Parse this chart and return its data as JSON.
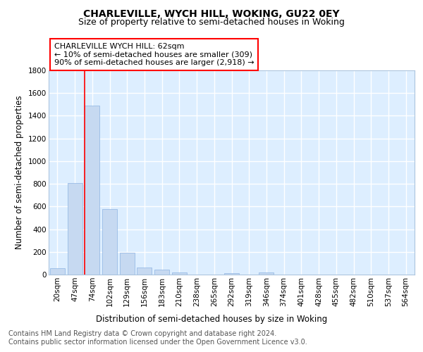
{
  "title": "CHARLEVILLE, WYCH HILL, WOKING, GU22 0EY",
  "subtitle": "Size of property relative to semi-detached houses in Woking",
  "xlabel": "Distribution of semi-detached houses by size in Woking",
  "ylabel": "Number of semi-detached properties",
  "footer_line1": "Contains HM Land Registry data © Crown copyright and database right 2024.",
  "footer_line2": "Contains public sector information licensed under the Open Government Licence v3.0.",
  "bar_labels": [
    "20sqm",
    "47sqm",
    "74sqm",
    "102sqm",
    "129sqm",
    "156sqm",
    "183sqm",
    "210sqm",
    "238sqm",
    "265sqm",
    "292sqm",
    "319sqm",
    "346sqm",
    "374sqm",
    "401sqm",
    "428sqm",
    "455sqm",
    "482sqm",
    "510sqm",
    "537sqm",
    "564sqm"
  ],
  "bar_values": [
    55,
    810,
    1490,
    580,
    195,
    65,
    42,
    20,
    0,
    0,
    15,
    0,
    20,
    0,
    0,
    0,
    0,
    0,
    0,
    0,
    0
  ],
  "bar_color": "#c6d9f1",
  "bar_edge_color": "#8db3e2",
  "background_color": "#ddeeff",
  "grid_color": "#ffffff",
  "red_line_index": 2,
  "annotation_title": "CHARLEVILLE WYCH HILL: 62sqm",
  "annotation_line1": "← 10% of semi-detached houses are smaller (309)",
  "annotation_line2": "90% of semi-detached houses are larger (2,918) →",
  "ylim": [
    0,
    1800
  ],
  "yticks": [
    0,
    200,
    400,
    600,
    800,
    1000,
    1200,
    1400,
    1600,
    1800
  ],
  "title_fontsize": 10,
  "subtitle_fontsize": 9,
  "axis_label_fontsize": 8.5,
  "tick_fontsize": 7.5,
  "annotation_fontsize": 8,
  "footer_fontsize": 7
}
